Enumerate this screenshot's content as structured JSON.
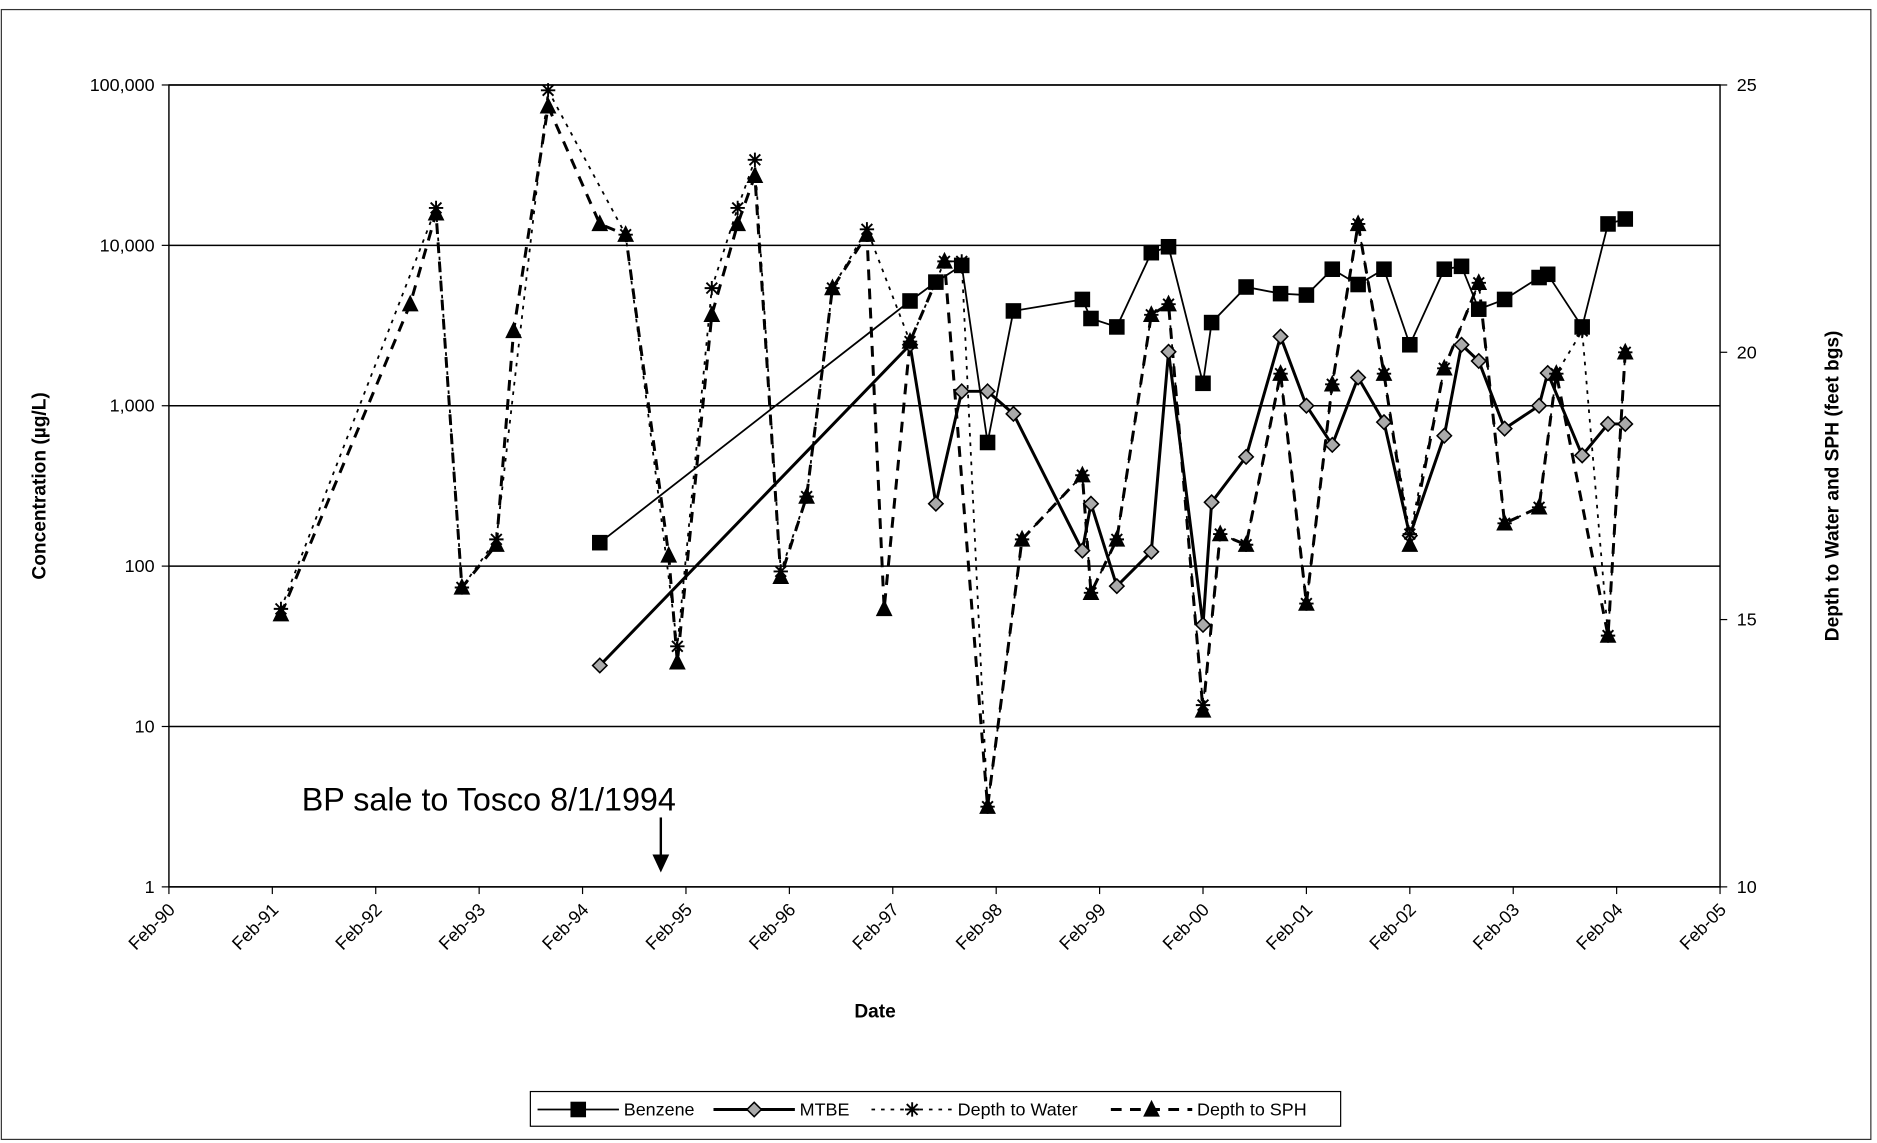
{
  "chart_data": {
    "type": "line",
    "x_label": "Date",
    "y_label": "Concentration (µg/L)",
    "y2_label": "Depth to Water and  SPH (feet bgs)",
    "annotation": "BP sale to Tosco 8/1/1994",
    "y_scale": "log",
    "grid": true,
    "legend_position": "bottom",
    "xlim": [
      "1990-02",
      "2005-02"
    ],
    "xticks": [
      {
        "value": "1990-02",
        "label": "Feb-90"
      },
      {
        "value": "1991-02",
        "label": "Feb-91"
      },
      {
        "value": "1992-02",
        "label": "Feb-92"
      },
      {
        "value": "1993-02",
        "label": "Feb-93"
      },
      {
        "value": "1994-02",
        "label": "Feb-94"
      },
      {
        "value": "1995-02",
        "label": "Feb-95"
      },
      {
        "value": "1996-02",
        "label": "Feb-96"
      },
      {
        "value": "1997-02",
        "label": "Feb-97"
      },
      {
        "value": "1998-02",
        "label": "Feb-98"
      },
      {
        "value": "1999-02",
        "label": "Feb-99"
      },
      {
        "value": "2000-02",
        "label": "Feb-00"
      },
      {
        "value": "2001-02",
        "label": "Feb-01"
      },
      {
        "value": "2002-02",
        "label": "Feb-02"
      },
      {
        "value": "2003-02",
        "label": "Feb-03"
      },
      {
        "value": "2004-02",
        "label": "Feb-04"
      },
      {
        "value": "2005-02",
        "label": "Feb-05"
      }
    ],
    "ylim": [
      1,
      100000
    ],
    "yticks": [
      {
        "value": 100000,
        "label": "100,000"
      },
      {
        "value": 10000,
        "label": "10,000"
      },
      {
        "value": 1000,
        "label": "1,000"
      },
      100,
      10,
      1
    ],
    "y2lim": [
      10,
      25
    ],
    "y2ticks": [
      10,
      15,
      20,
      25
    ],
    "series": [
      {
        "name": "Benzene",
        "color": "#000000",
        "marker": "square",
        "line_style": "solid",
        "line_width": 1.5,
        "x": [
          "1994-04",
          "1997-04",
          "1997-07",
          "1997-10",
          "1998-01",
          "1998-04",
          "1998-12",
          "1999-01",
          "1999-04",
          "1999-08",
          "1999-10",
          "2000-02",
          "2000-03",
          "2000-07",
          "2000-11",
          "2001-02",
          "2001-05",
          "2001-08",
          "2001-11",
          "2002-02",
          "2002-06",
          "2002-08",
          "2002-10",
          "2003-01",
          "2003-05",
          "2003-06",
          "2003-10",
          "2004-01",
          "2004-03"
        ],
        "values": [
          140,
          4500,
          5900,
          7500,
          590,
          3900,
          4600,
          3500,
          3100,
          9000,
          9800,
          1380,
          3300,
          5500,
          5000,
          4900,
          7100,
          5700,
          7100,
          2400,
          7100,
          7400,
          4000,
          4600,
          6300,
          6600,
          3100,
          13600,
          14600
        ]
      },
      {
        "name": "MTBE",
        "color": "#000000",
        "marker": "diamond",
        "line_style": "solid",
        "line_width": 2.5,
        "x": [
          "1994-04",
          "1997-04",
          "1997-07",
          "1997-10",
          "1998-01",
          "1998-04",
          "1998-12",
          "1999-01",
          "1999-04",
          "1999-08",
          "1999-10",
          "2000-02",
          "2000-03",
          "2000-07",
          "2000-11",
          "2001-02",
          "2001-05",
          "2001-08",
          "2001-11",
          "2002-02",
          "2002-06",
          "2002-08",
          "2002-10",
          "2003-01",
          "2003-05",
          "2003-06",
          "2003-10",
          "2004-01",
          "2004-03"
        ],
        "values": [
          24,
          2400,
          245,
          1230,
          1230,
          890,
          125,
          245,
          75,
          123,
          2170,
          43,
          250,
          480,
          2700,
          1000,
          570,
          1500,
          790,
          155,
          650,
          2400,
          1900,
          720,
          1000,
          1600,
          490,
          770,
          770
        ]
      },
      {
        "name": "Depth to Water",
        "color": "#000000",
        "marker": "asterisk",
        "line_style": "dotted",
        "line_width": 1.5,
        "axis": "y2",
        "x": [
          "1991-03",
          "1992-09",
          "1992-12",
          "1993-04",
          "1993-10",
          "1994-07",
          "1995-01",
          "1995-05",
          "1995-08",
          "1995-10",
          "1996-01",
          "1996-04",
          "1996-07",
          "1996-11",
          "1997-04",
          "1997-08",
          "1997-10",
          "1998-01",
          "1998-05",
          "1998-12",
          "1999-01",
          "1999-04",
          "1999-08",
          "1999-10",
          "2000-02",
          "2000-04",
          "2000-07",
          "2000-11",
          "2001-02",
          "2001-05",
          "2001-08",
          "2001-11",
          "2002-02",
          "2002-06",
          "2002-10",
          "2003-01",
          "2003-05",
          "2003-07",
          "2003-10",
          "2004-01",
          "2004-03"
        ],
        "values": [
          15.2,
          22.7,
          15.6,
          16.5,
          24.9,
          22.2,
          14.5,
          21.2,
          22.7,
          23.6,
          15.9,
          17.3,
          21.2,
          22.3,
          20.2,
          21.7,
          21.7,
          11.5,
          16.5,
          17.7,
          15.5,
          16.5,
          20.7,
          20.9,
          13.4,
          16.6,
          16.4,
          19.6,
          15.3,
          19.4,
          22.4,
          19.6,
          16.6,
          19.7,
          21.3,
          16.8,
          17.1,
          19.6,
          20.4,
          14.7,
          20.0
        ]
      },
      {
        "name": "Depth to SPH",
        "color": "#000000",
        "marker": "triangle",
        "line_style": "dashed",
        "line_width": 2.5,
        "axis": "y2",
        "x": [
          "1991-03",
          "1992-06",
          "1992-09",
          "1992-12",
          "1993-04",
          "1993-06",
          "1993-10",
          "1994-04",
          "1994-07",
          "1994-12",
          "1995-01",
          "1995-05",
          "1995-08",
          "1995-10",
          "1996-01",
          "1996-04",
          "1996-07",
          "1996-11",
          "1997-01",
          "1997-04",
          "1997-08",
          "1998-01",
          "1998-05",
          "1998-12",
          "1999-01",
          "1999-04",
          "1999-08",
          "1999-10",
          "2000-02",
          "2000-04",
          "2000-07",
          "2000-11",
          "2001-02",
          "2001-05",
          "2001-08",
          "2001-11",
          "2002-02",
          "2002-06",
          "2002-10",
          "2003-01",
          "2003-05",
          "2003-07",
          "2004-01",
          "2004-03"
        ],
        "values": [
          15.1,
          20.9,
          22.6,
          15.6,
          16.4,
          20.4,
          24.6,
          22.4,
          22.2,
          16.2,
          14.2,
          20.7,
          22.4,
          23.3,
          15.8,
          17.3,
          21.2,
          22.2,
          15.2,
          20.2,
          21.7,
          11.5,
          16.5,
          17.7,
          15.5,
          16.5,
          20.7,
          20.9,
          13.3,
          16.6,
          16.4,
          19.6,
          15.3,
          19.4,
          22.4,
          19.6,
          16.4,
          19.7,
          21.3,
          16.8,
          17.1,
          19.6,
          14.7,
          20.0
        ]
      }
    ]
  }
}
